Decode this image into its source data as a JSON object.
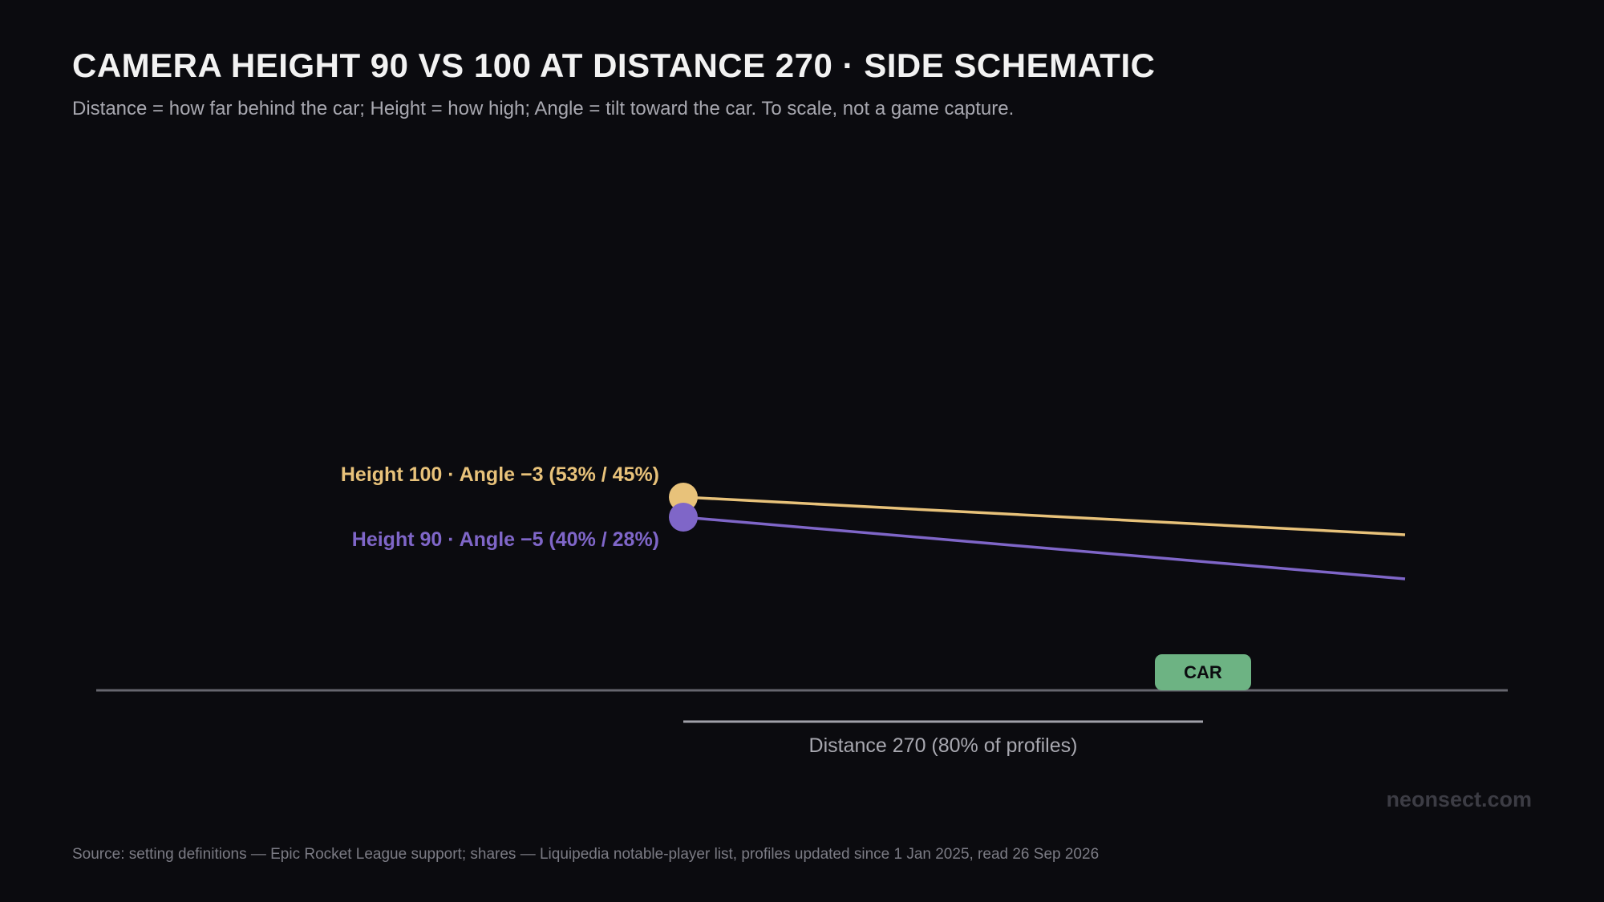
{
  "header": {
    "title": "CAMERA HEIGHT 90 VS 100 AT DISTANCE 270 · SIDE SCHEMATIC",
    "subtitle": "Distance = how far behind the car; Height = how high; Angle = tilt toward the car. To scale, not a game capture."
  },
  "schematic": {
    "cameras": [
      {
        "label": "Height 100 · Angle −3 (53% / 45%)",
        "height": 100,
        "angle": -3,
        "color": "#e8c27a"
      },
      {
        "label": "Height 90 · Angle −5 (40% / 28%)",
        "height": 90,
        "angle": -5,
        "color": "#7f66c8"
      }
    ],
    "car": {
      "label": "CAR",
      "color": "#6db383"
    },
    "distance": {
      "label": "Distance 270 (80% of profiles)",
      "value": 270
    },
    "ground_color": "#66666e"
  },
  "footer": {
    "source": "Source: setting definitions — Epic Rocket League support; shares — Liquipedia notable-player list, profiles updated since 1 Jan 2025, read 26 Sep 2026",
    "watermark": "neonsect.com"
  }
}
